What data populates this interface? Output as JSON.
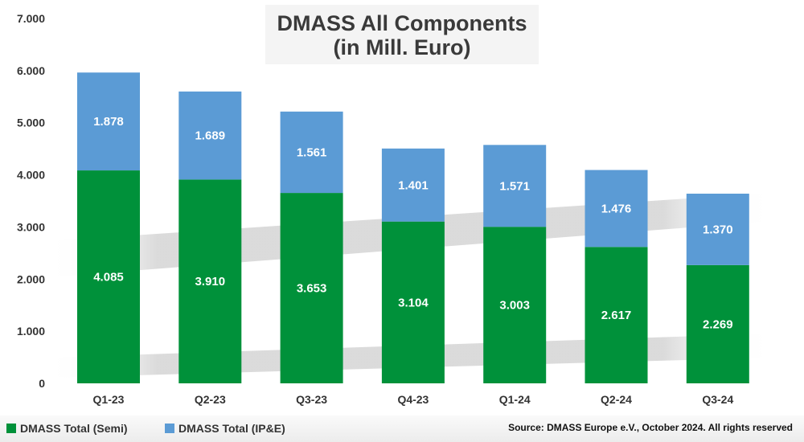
{
  "title": {
    "line1": "DMASS All Components",
    "line2": "(in Mill. Euro)"
  },
  "source": "Source: DMASS Europe e.V., October 2024. All rights reserved",
  "colors": {
    "semi": "#00913a",
    "ipe": "#5b9bd5",
    "axis_text": "#333333",
    "label_text": "#ffffff"
  },
  "chart_data": {
    "type": "bar",
    "stacked": true,
    "title": "DMASS All Components (in Mill. Euro)",
    "categories": [
      "Q1-23",
      "Q2-23",
      "Q3-23",
      "Q4-23",
      "Q1-24",
      "Q2-24",
      "Q3-24"
    ],
    "series": [
      {
        "name": "DMASS Total (Semi)",
        "values": [
          4085,
          3910,
          3653,
          3104,
          3003,
          2617,
          2269
        ],
        "labels": [
          "4.085",
          "3.910",
          "3.653",
          "3.104",
          "3.003",
          "2.617",
          "2.269"
        ]
      },
      {
        "name": "DMASS Total (IP&E)",
        "values": [
          1878,
          1689,
          1561,
          1401,
          1571,
          1476,
          1370
        ],
        "labels": [
          "1.878",
          "1.689",
          "1.561",
          "1.401",
          "1.571",
          "1.476",
          "1.370"
        ]
      }
    ],
    "ylim": [
      0,
      7000
    ],
    "yticks": [
      0,
      1000,
      2000,
      3000,
      4000,
      5000,
      6000,
      7000
    ],
    "ytick_labels": [
      "0",
      "1.000",
      "2.000",
      "3.000",
      "4.000",
      "5.000",
      "6.000",
      "7.000"
    ],
    "legend_position": "bottom-left",
    "grid": false
  }
}
